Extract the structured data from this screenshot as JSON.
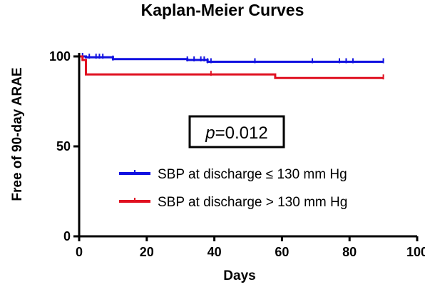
{
  "chart_data": {
    "type": "line",
    "title": "Kaplan-Meier Curves",
    "xlabel": "Days",
    "ylabel": "Free of 90-day ARAE",
    "xlim": [
      0,
      100
    ],
    "ylim": [
      0,
      100
    ],
    "xticks": [
      0,
      20,
      40,
      60,
      80,
      100
    ],
    "yticks": [
      0,
      50,
      100
    ],
    "xtick_labels": [
      "0",
      "20",
      "40",
      "60",
      "80",
      "100"
    ],
    "ytick_labels": [
      "0",
      "50",
      "100"
    ],
    "grid": false,
    "legend_position": "center-right",
    "annotation": {
      "p_symbol": "p",
      "p_rest": "=0.012"
    },
    "series": [
      {
        "name": "SBP at discharge ≤ 130 mm Hg",
        "color": "#1010e0",
        "steps": [
          [
            0,
            100
          ],
          [
            2,
            99.5
          ],
          [
            10,
            98.5
          ],
          [
            32,
            98
          ],
          [
            38,
            97
          ],
          [
            90,
            97
          ]
        ],
        "censor_x": [
          1,
          3,
          5,
          6,
          7,
          10,
          32,
          34,
          36,
          37,
          38,
          39,
          52,
          69,
          77,
          79,
          81,
          90
        ]
      },
      {
        "name": "SBP at discharge > 130 mm Hg",
        "color": "#e01020",
        "steps": [
          [
            0,
            100
          ],
          [
            1,
            98
          ],
          [
            2,
            90
          ],
          [
            58,
            88
          ],
          [
            90,
            88
          ]
        ],
        "censor_x": [
          39,
          90
        ]
      }
    ]
  }
}
